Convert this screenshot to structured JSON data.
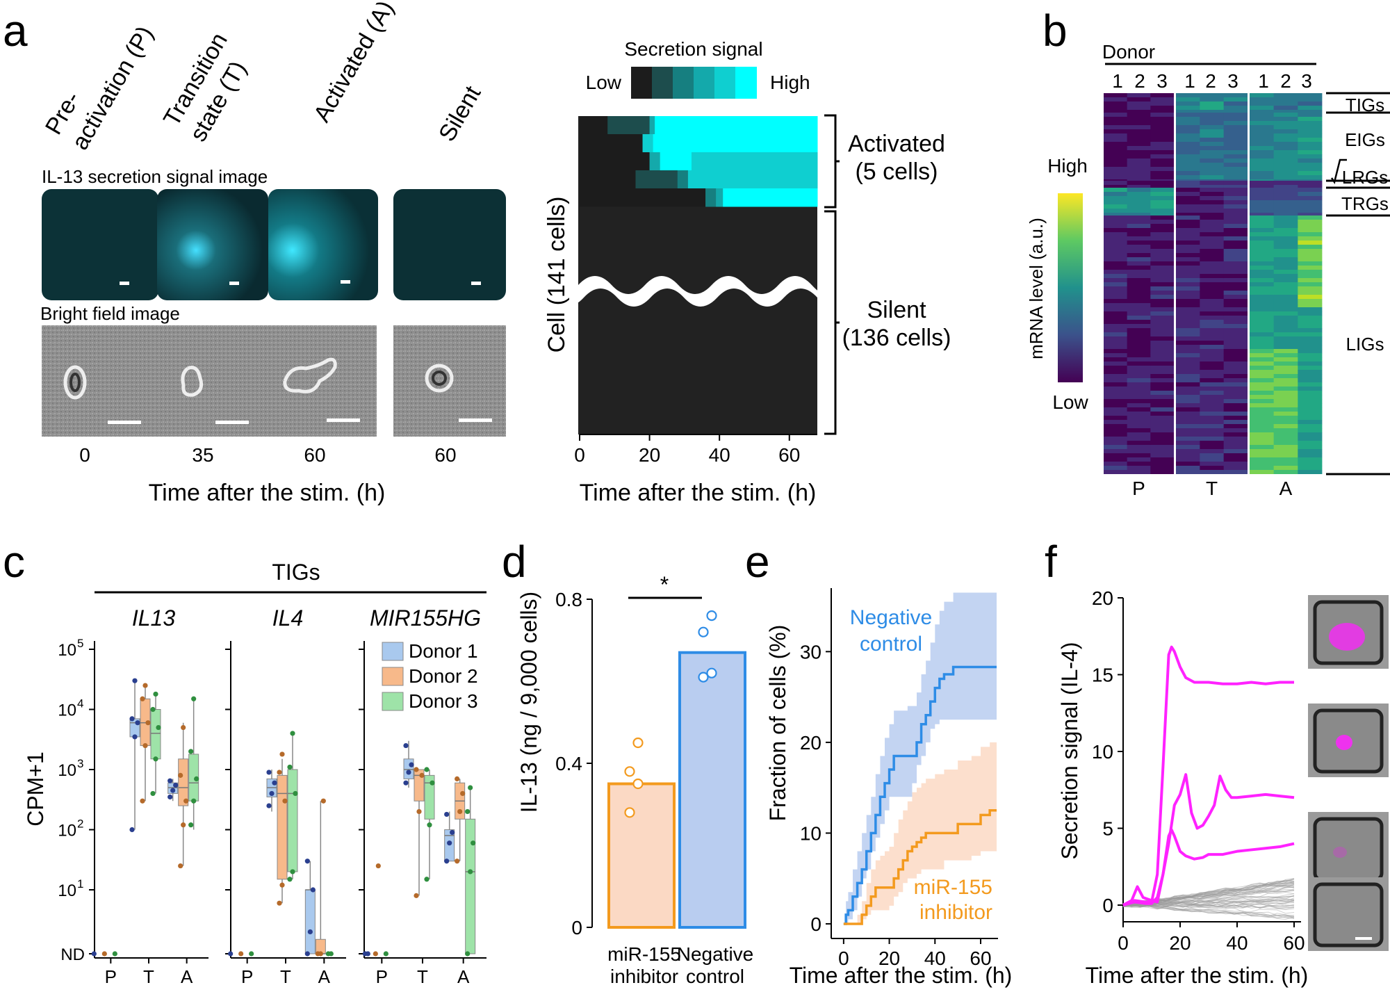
{
  "panel_letters": [
    "a",
    "b",
    "c",
    "d",
    "e",
    "f"
  ],
  "colors": {
    "cyan": "#00e5ee",
    "magenta": "#ff22ff",
    "blue": "#2e8ce6",
    "orange": "#f39a1e",
    "light_blue": "#b9cdf0",
    "light_orange": "#fbd9c4",
    "donor1": "#a9c9ee",
    "donor2": "#f7b98a",
    "donor3": "#9ee3a8",
    "dot1": "#2a3f8f",
    "dot2": "#b56a2a",
    "dot3": "#2f8f3f",
    "heat_low": "#35104f",
    "heat_high": "#fde725"
  },
  "panel_a": {
    "state_labels": [
      "Pre-\nactivation (P)",
      "Transition\nstate (T)",
      "Activated (A)",
      "Silent"
    ],
    "secretion_title": "IL-13 secretion signal image",
    "brightfield_title": "Bright field image",
    "times": [
      "0",
      "35",
      "60",
      "60"
    ],
    "xlabel": "Time after the stim. (h)",
    "colorbar": {
      "title": "Secretion signal",
      "low": "Low",
      "high": "High",
      "steps": [
        "#1c1c1c",
        "#1d4d4d",
        "#167f80",
        "#14a9ab",
        "#0fcfd0",
        "#00ffff"
      ]
    },
    "ylabel": "Cell (141 cells)",
    "activated_label": "Activated\n(5 cells)",
    "silent_label": "Silent\n(136 cells)",
    "xticks": [
      "0",
      "20",
      "40",
      "60"
    ]
  },
  "panel_b": {
    "donor_title": "Donor",
    "donor_numbers": [
      "1",
      "2",
      "3",
      "1",
      "2",
      "3",
      "1",
      "2",
      "3"
    ],
    "colorbar_high": "High",
    "colorbar_low": "Low",
    "colorbar_label": "mRNA level (a.u.)",
    "gene_groups": [
      "TIGs",
      "EIGs",
      "LRGs",
      "TRGs",
      "LIGs"
    ],
    "xlabels": [
      "P",
      "T",
      "A"
    ]
  },
  "chart_data": [
    {
      "panel": "c",
      "type": "box",
      "title": "TIGs",
      "genes": [
        "IL13",
        "IL4",
        "MIR155HG"
      ],
      "categories": [
        "P",
        "T",
        "A"
      ],
      "ylabel": "CPM+1",
      "ytick_labels": [
        "ND",
        "10",
        "10",
        "10",
        "10",
        "10"
      ],
      "ytick_exponents": [
        "",
        "1",
        "2",
        "3",
        "4",
        "5"
      ],
      "yscale": "log",
      "legend": [
        "Donor 1",
        "Donor 2",
        "Donor 3"
      ],
      "boxes": {
        "IL13": {
          "P": [
            [
              0,
              0,
              0,
              0,
              0
            ],
            [
              0,
              0,
              0,
              0,
              0
            ],
            [
              0,
              0,
              0,
              0,
              0
            ]
          ],
          "T": [
            [
              100,
              3500,
              6000,
              7000,
              30000
            ],
            [
              300,
              2500,
              6000,
              15000,
              25000
            ],
            [
              400,
              1500,
              4000,
              10000,
              18000
            ]
          ],
          "A": [
            [
              300,
              400,
              500,
              600,
              700
            ],
            [
              25,
              250,
              500,
              1500,
              6000
            ],
            [
              100,
              300,
              600,
              1800,
              15000
            ]
          ]
        },
        "IL4": {
          "P": [
            [
              0,
              0,
              0,
              0,
              0
            ],
            [
              0,
              0,
              0,
              0,
              0
            ],
            [
              0,
              0,
              0,
              0,
              0
            ]
          ],
          "T": [
            [
              200,
              350,
              500,
              700,
              1000
            ],
            [
              6,
              15,
              400,
              800,
              1500
            ],
            [
              15,
              20,
              400,
              1000,
              4000
            ]
          ],
          "A": [
            [
              0,
              0,
              10,
              10,
              30
            ],
            [
              0,
              0,
              0,
              1.5,
              300
            ],
            [
              0,
              0,
              0,
              0,
              0
            ]
          ]
        },
        "MIR155HG": {
          "P": [
            [
              0,
              0,
              0,
              0,
              0
            ],
            [
              0,
              0,
              0,
              0,
              0
            ],
            [
              0,
              0,
              0,
              0,
              0
            ]
          ],
          "T": [
            [
              500,
              700,
              1000,
              1500,
              3000
            ],
            [
              8,
              300,
              800,
              1000,
              1000
            ],
            [
              15,
              150,
              600,
              800,
              1000
            ]
          ],
          "A": [
            [
              30,
              30,
              80,
              100,
              200
            ],
            [
              30,
              150,
              300,
              600,
              700
            ],
            [
              0,
              0,
              20,
              150,
              500
            ]
          ]
        }
      },
      "points": {
        "IL13": {
          "P": [
            [
              0
            ],
            [
              0
            ],
            [
              0
            ]
          ],
          "T": [
            [
              100,
              3500,
              6000,
              7000,
              30000
            ],
            [
              300,
              2500,
              6000,
              15000,
              25000
            ],
            [
              400,
              1500,
              5000,
              10000,
              18000
            ]
          ],
          "A": [
            [
              350,
              450,
              550,
              650
            ],
            [
              25,
              120,
              300,
              800,
              5000
            ],
            [
              120,
              300,
              700,
              2000,
              15000
            ]
          ]
        },
        "IL4": {
          "P": [
            [
              0
            ],
            [
              0
            ],
            [
              0
            ]
          ],
          "T": [
            [
              250,
              400,
              600,
              900
            ],
            [
              6,
              12,
              300,
              900,
              1800
            ],
            [
              15,
              20,
              400,
              1100,
              4000
            ]
          ],
          "A": [
            [
              0,
              2,
              10,
              30
            ],
            [
              0,
              0,
              300
            ],
            [
              0,
              0
            ]
          ]
        },
        "MIR155HG": {
          "P": [
            [
              0,
              0
            ],
            [
              0,
              25
            ],
            [
              0
            ]
          ],
          "T": [
            [
              600,
              900,
              1200,
              2500
            ],
            [
              8,
              200,
              800,
              1000
            ],
            [
              15,
              120,
              600,
              1000
            ]
          ],
          "A": [
            [
              30,
              60,
              90,
              180
            ],
            [
              30,
              200,
              400,
              700
            ],
            [
              0,
              20,
              60,
              200,
              500
            ]
          ]
        }
      }
    },
    {
      "panel": "d",
      "type": "bar",
      "categories": [
        "miR-155\ninhibitor",
        "Negative\ncontrol"
      ],
      "values": [
        0.35,
        0.67
      ],
      "points": [
        [
          0.45,
          0.38,
          0.35,
          0.28
        ],
        [
          0.76,
          0.72,
          0.62,
          0.61
        ]
      ],
      "ylabel": "IL-13 (ng / 9,000 cells)",
      "yticks": [
        "0",
        "0.4",
        "0.8"
      ],
      "ylim": [
        0,
        0.8
      ],
      "significance": "*"
    },
    {
      "panel": "e",
      "type": "line",
      "xlabel": "Time after the stim. (h)",
      "ylabel": "Fraction of cells (%)",
      "xticks": [
        "0",
        "20",
        "40",
        "60"
      ],
      "yticks": [
        "0",
        "10",
        "20",
        "30"
      ],
      "xlim": [
        -3,
        67
      ],
      "ylim": [
        -1,
        37
      ],
      "series": [
        {
          "name": "Negative\ncontrol",
          "x": [
            0,
            1,
            2,
            4,
            6,
            8,
            10,
            12,
            14,
            16,
            18,
            20,
            22,
            25,
            28,
            30,
            32,
            34,
            36,
            38,
            40,
            42,
            44,
            48,
            55,
            67
          ],
          "y": [
            0,
            1,
            1.5,
            3,
            4.5,
            6,
            8,
            10,
            12,
            14,
            15.5,
            17,
            18.5,
            18.5,
            18.5,
            18.5,
            20,
            22,
            23,
            24.5,
            26,
            27,
            27.5,
            28.3,
            28.3,
            28.3
          ],
          "lower": [
            0,
            0,
            0,
            0.5,
            1.5,
            3,
            5,
            6,
            8,
            9.5,
            11,
            12.5,
            14,
            14,
            14,
            14,
            15.5,
            17.5,
            18.5,
            20,
            21.5,
            22,
            22.5,
            22.5,
            22.5,
            22.5
          ],
          "upper": [
            0,
            2.5,
            3.5,
            6,
            8,
            10,
            12,
            14,
            16.5,
            18.5,
            20.5,
            22,
            23.5,
            23.5,
            24,
            24,
            25.5,
            27.5,
            29,
            31,
            33,
            34.5,
            35.5,
            36.5,
            36.5,
            36.5
          ]
        },
        {
          "name": "miR-155\ninhibitor",
          "x": [
            0,
            6,
            8,
            10,
            12,
            14,
            16,
            18,
            20,
            22,
            24,
            26,
            28,
            30,
            32,
            34,
            36,
            40,
            44,
            50,
            56,
            60,
            64,
            67
          ],
          "y": [
            0,
            0,
            1,
            2,
            3,
            4,
            4,
            4,
            4,
            5,
            6,
            7,
            8,
            8.5,
            9,
            9.5,
            10,
            10,
            10,
            11,
            11,
            12,
            12.5,
            12.5
          ],
          "lower": [
            0,
            0,
            0,
            0.5,
            1,
            1.5,
            1.5,
            1.5,
            1.5,
            2,
            3,
            3.5,
            4.5,
            5,
            5,
            5.5,
            6,
            6,
            6,
            7,
            7,
            7.5,
            8,
            8
          ],
          "upper": [
            0,
            1,
            2.5,
            4.5,
            6,
            7,
            7.5,
            8,
            8.5,
            10,
            11.5,
            12.5,
            13.5,
            14.5,
            15,
            15.5,
            16,
            16.5,
            17,
            18,
            18.5,
            19.5,
            20,
            20
          ]
        }
      ]
    },
    {
      "panel": "f",
      "type": "line",
      "xlabel": "Time after the stim. (h)",
      "ylabel": "Secretion signal (IL-4)",
      "xticks": [
        "0",
        "20",
        "40",
        "60"
      ],
      "yticks": [
        "0",
        "5",
        "10",
        "15",
        "20"
      ],
      "xlim": [
        0,
        62
      ],
      "ylim": [
        -1,
        20
      ],
      "series": [
        {
          "name": "",
          "x": [
            0,
            4,
            8,
            10,
            12,
            14,
            16,
            17,
            18,
            20,
            22,
            25,
            30,
            35,
            40,
            45,
            50,
            55,
            60
          ],
          "y": [
            0,
            0.3,
            0.2,
            0.2,
            2,
            9,
            16.3,
            16.8,
            16.5,
            15.5,
            14.8,
            14.5,
            14.5,
            14.4,
            14.4,
            14.5,
            14.4,
            14.5,
            14.5
          ]
        },
        {
          "name": "",
          "x": [
            0,
            4,
            8,
            10,
            12,
            14,
            16,
            18,
            20,
            22,
            24,
            26,
            28,
            30,
            32,
            34,
            36,
            38,
            40,
            45,
            50,
            55,
            60
          ],
          "y": [
            0,
            0.2,
            0.1,
            0.1,
            0.5,
            2,
            4,
            6.5,
            7.2,
            8.5,
            6,
            5,
            5.2,
            5.8,
            6.5,
            8.4,
            7.5,
            7,
            7,
            7.1,
            7.2,
            7.1,
            7
          ]
        },
        {
          "name": "",
          "x": [
            0,
            3,
            5,
            7,
            10,
            12,
            14,
            16,
            17,
            18,
            20,
            22,
            25,
            28,
            30,
            35,
            40,
            45,
            50,
            55,
            60
          ],
          "y": [
            0,
            0.3,
            1.2,
            0.5,
            0.3,
            0.2,
            2,
            4.5,
            4.9,
            4.5,
            3.5,
            3.2,
            3,
            3.1,
            3.3,
            3.3,
            3.5,
            3.6,
            3.7,
            3.8,
            4
          ]
        }
      ]
    }
  ],
  "panel_e_labels": {
    "neg": "Negative\ncontrol",
    "inh": "miR-155\ninhibitor"
  }
}
